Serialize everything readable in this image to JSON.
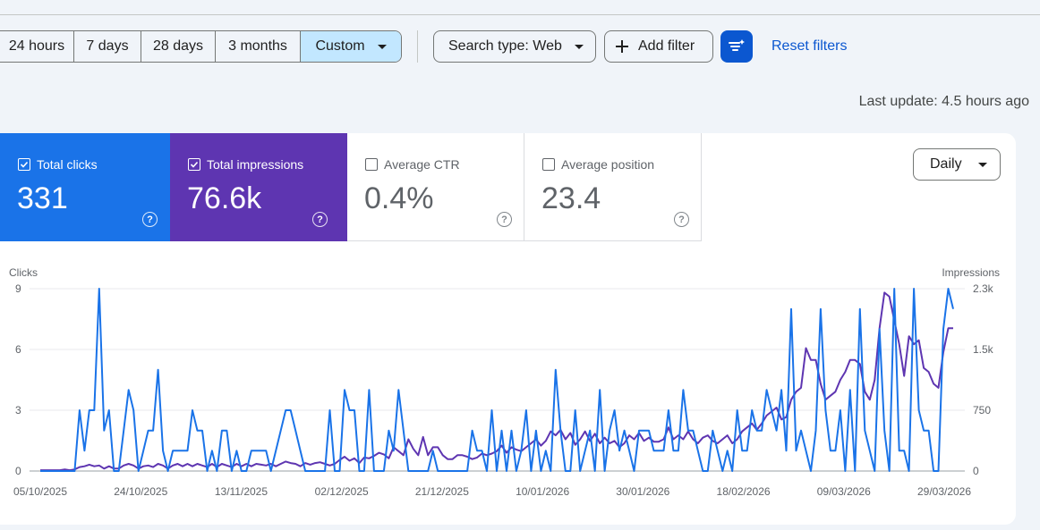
{
  "toolbar": {
    "ranges": [
      "24 hours",
      "7 days",
      "28 days",
      "3 months",
      "Custom"
    ],
    "search_type": "Search type: Web",
    "add_filter": "Add filter",
    "reset_filters": "Reset filters"
  },
  "last_update": "Last update: 4.5 hours ago",
  "metrics": {
    "clicks": {
      "label": "Total clicks",
      "value": "331",
      "checked": true
    },
    "impressions": {
      "label": "Total impressions",
      "value": "76.6k",
      "checked": true
    },
    "ctr": {
      "label": "Average CTR",
      "value": "0.4%",
      "checked": false
    },
    "position": {
      "label": "Average position",
      "value": "23.4",
      "checked": false
    }
  },
  "granularity": "Daily",
  "colors": {
    "clicks": "#1a73e8",
    "impressions": "#5e35b1",
    "link": "#0b57d0"
  },
  "chart_data": {
    "type": "line",
    "left_axis_label": "Clicks",
    "right_axis_label": "Impressions",
    "left_ticks": [
      "0",
      "3",
      "6",
      "9"
    ],
    "right_ticks": [
      "0",
      "750",
      "1.5k",
      "2.3k"
    ],
    "x_tick_labels": [
      "05/10/2025",
      "24/10/2025",
      "13/11/2025",
      "02/12/2025",
      "21/12/2025",
      "10/01/2026",
      "30/01/2026",
      "18/02/2026",
      "09/03/2026",
      "29/03/2026"
    ],
    "ylim_clicks": [
      0,
      9
    ],
    "ylim_impressions": [
      0,
      2300
    ],
    "series": [
      {
        "name": "Clicks",
        "axis": "left",
        "values": [
          0,
          0,
          0,
          0,
          0,
          0,
          0,
          0,
          3,
          1,
          3,
          3,
          9,
          2,
          3,
          0,
          0,
          2,
          4,
          3,
          0,
          1,
          2,
          2,
          5,
          1,
          0,
          1,
          1,
          1,
          1,
          3,
          2,
          2,
          0,
          1,
          0,
          2,
          2,
          0,
          1,
          0,
          0,
          1,
          1,
          1,
          1,
          0,
          1,
          2,
          3,
          3,
          2,
          1,
          0,
          0,
          0,
          0,
          0,
          3,
          0,
          0,
          4,
          3,
          3,
          0,
          0,
          4,
          0,
          0,
          0,
          2,
          1,
          4,
          2,
          0,
          0,
          0,
          0,
          0,
          1,
          0,
          0,
          0,
          0,
          0,
          0,
          0,
          2,
          1,
          1,
          0,
          3,
          0,
          2,
          0,
          2,
          0,
          1,
          3,
          0,
          2,
          0,
          1,
          0,
          5,
          2,
          0,
          0,
          3,
          0,
          1,
          2,
          0,
          4,
          0,
          2,
          3,
          1,
          2,
          1,
          0,
          2,
          2,
          2,
          1,
          1,
          1,
          3,
          1,
          1,
          4,
          2,
          2,
          1,
          0,
          0,
          2,
          1,
          0,
          1,
          0,
          3,
          1,
          1,
          3,
          2,
          2,
          4,
          3,
          2,
          4,
          1,
          8,
          1,
          2,
          1,
          0,
          2,
          8,
          3,
          1,
          1,
          3,
          0,
          4,
          0,
          8,
          2,
          1,
          0,
          7,
          2,
          0,
          9,
          1,
          1,
          0,
          9,
          3,
          2,
          2,
          0,
          0,
          7,
          9,
          8
        ]
      },
      {
        "name": "Impressions",
        "axis": "right",
        "values": [
          10,
          10,
          10,
          10,
          10,
          20,
          10,
          20,
          50,
          60,
          80,
          60,
          70,
          30,
          60,
          30,
          30,
          70,
          90,
          70,
          30,
          60,
          70,
          50,
          90,
          70,
          30,
          70,
          90,
          60,
          90,
          60,
          90,
          70,
          50,
          90,
          50,
          90,
          70,
          50,
          90,
          60,
          90,
          60,
          90,
          80,
          70,
          90,
          60,
          90,
          120,
          100,
          90,
          60,
          100,
          80,
          100,
          110,
          90,
          70,
          90,
          140,
          180,
          130,
          160,
          100,
          170,
          160,
          190,
          230,
          210,
          160,
          300,
          250,
          200,
          400,
          280,
          200,
          430,
          200,
          300,
          300,
          200,
          150,
          150,
          200,
          200,
          180,
          150,
          170,
          220,
          200,
          220,
          250,
          320,
          230,
          300,
          270,
          250,
          300,
          350,
          400,
          320,
          380,
          500,
          450,
          520,
          400,
          480,
          330,
          400,
          500,
          380,
          470,
          350,
          420,
          350,
          380,
          300,
          350,
          450,
          400,
          480,
          380,
          420,
          370,
          370,
          400,
          550,
          400,
          450,
          400,
          500,
          400,
          350,
          420,
          450,
          380,
          350,
          400,
          450,
          350,
          400,
          500,
          550,
          600,
          520,
          600,
          700,
          750,
          800,
          650,
          680,
          900,
          1000,
          1050,
          1550,
          1400,
          1400,
          1100,
          900,
          950,
          1000,
          1150,
          1250,
          1400,
          1400,
          1350,
          1000,
          900,
          1150,
          1800,
          2250,
          2200,
          1900,
          1600,
          1200,
          1700,
          1600,
          1650,
          1300,
          1250,
          1100,
          1050,
          1500,
          1800,
          1800
        ]
      }
    ]
  }
}
